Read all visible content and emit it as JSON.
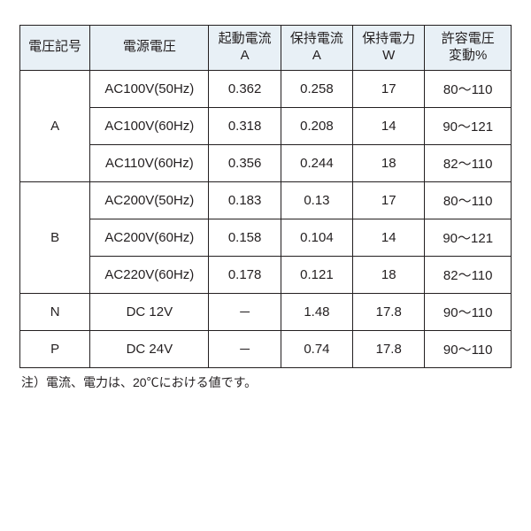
{
  "table": {
    "header_bg": "#e8f0f6",
    "border_color": "#231f20",
    "text_color": "#231f20",
    "columns": [
      {
        "label_line1": "電圧記号",
        "label_line2": ""
      },
      {
        "label_line1": "電源電圧",
        "label_line2": ""
      },
      {
        "label_line1": "起動電流",
        "label_line2": "A"
      },
      {
        "label_line1": "保持電流",
        "label_line2": "A"
      },
      {
        "label_line1": "保持電力",
        "label_line2": "W"
      },
      {
        "label_line1": "許容電圧",
        "label_line2": "変動%"
      }
    ],
    "groups": [
      {
        "symbol": "A",
        "rows": [
          {
            "voltage": "AC100V(50Hz)",
            "start_current": "0.362",
            "hold_current": "0.258",
            "hold_power": "17",
            "tolerance": "80～110"
          },
          {
            "voltage": "AC100V(60Hz)",
            "start_current": "0.318",
            "hold_current": "0.208",
            "hold_power": "14",
            "tolerance": "90～121"
          },
          {
            "voltage": "AC110V(60Hz)",
            "start_current": "0.356",
            "hold_current": "0.244",
            "hold_power": "18",
            "tolerance": "82～110"
          }
        ]
      },
      {
        "symbol": "B",
        "rows": [
          {
            "voltage": "AC200V(50Hz)",
            "start_current": "0.183",
            "hold_current": "0.13",
            "hold_power": "17",
            "tolerance": "80～110"
          },
          {
            "voltage": "AC200V(60Hz)",
            "start_current": "0.158",
            "hold_current": "0.104",
            "hold_power": "14",
            "tolerance": "90～121"
          },
          {
            "voltage": "AC220V(60Hz)",
            "start_current": "0.178",
            "hold_current": "0.121",
            "hold_power": "18",
            "tolerance": "82～110"
          }
        ]
      },
      {
        "symbol": "N",
        "rows": [
          {
            "voltage": "DC  12V",
            "start_current": "－",
            "hold_current": "1.48",
            "hold_power": "17.8",
            "tolerance": "90～110"
          }
        ]
      },
      {
        "symbol": "P",
        "rows": [
          {
            "voltage": "DC  24V",
            "start_current": "－",
            "hold_current": "0.74",
            "hold_power": "17.8",
            "tolerance": "90～110"
          }
        ]
      }
    ]
  },
  "note": "注）電流、電力は、20℃における値です。"
}
